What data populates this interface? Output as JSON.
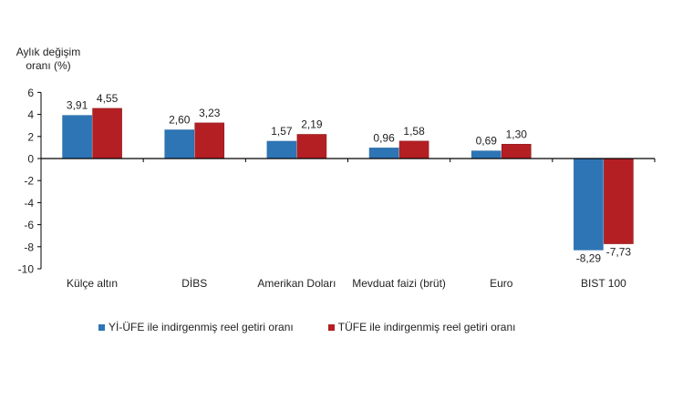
{
  "chart_data": {
    "type": "bar",
    "title": "",
    "ylabel": "Aylık değişim oranı (%)",
    "ylabel_lines": [
      "Aylık değişim",
      "oranı (%)"
    ],
    "xlabel": "",
    "ylim": [
      -10,
      6
    ],
    "yticks": [
      6,
      4,
      2,
      0,
      -2,
      -4,
      -6,
      -8,
      -10
    ],
    "grid": false,
    "legend_position": "bottom",
    "categories": [
      "Külçe altın",
      "DİBS",
      "Amerikan Doları",
      "Mevduat faizi (brüt)",
      "Euro",
      "BIST 100"
    ],
    "series": [
      {
        "name": "Yİ-ÜFE ile indirgenmiş reel getiri oranı",
        "color": "#2E75B6",
        "values": [
          3.91,
          2.6,
          1.57,
          0.96,
          0.69,
          -8.29
        ],
        "labels": [
          "3,91",
          "2,60",
          "1,57",
          "0,96",
          "0,69",
          "-8,29"
        ]
      },
      {
        "name": "TÜFE ile indirgenmiş reel getiri oranı",
        "color": "#B41F24",
        "values": [
          4.55,
          3.23,
          2.19,
          1.58,
          1.3,
          -7.73
        ],
        "labels": [
          "4,55",
          "3,23",
          "2,19",
          "1,58",
          "1,30",
          "-7,73"
        ]
      }
    ]
  }
}
